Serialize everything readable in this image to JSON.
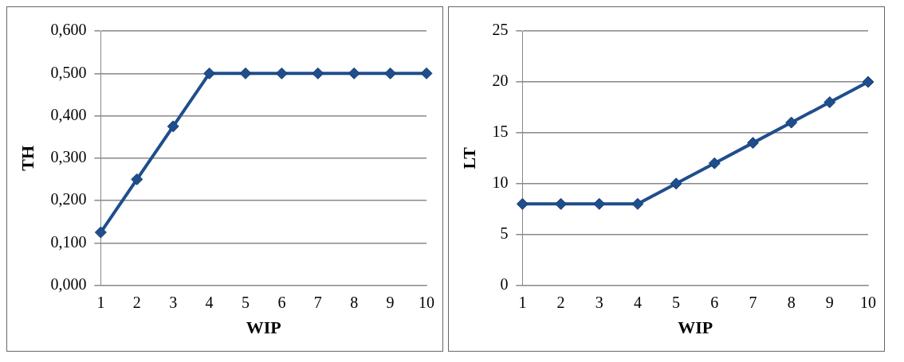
{
  "chart_data": [
    {
      "type": "line",
      "xlabel": "WIP",
      "ylabel": "TH",
      "categories": [
        "1",
        "2",
        "3",
        "4",
        "5",
        "6",
        "7",
        "8",
        "9",
        "10"
      ],
      "series": [
        {
          "color": "#1f4e8c",
          "values": [
            0.125,
            0.25,
            0.375,
            0.5,
            0.5,
            0.5,
            0.5,
            0.5,
            0.5,
            0.5
          ]
        }
      ],
      "ylim": [
        0,
        0.6
      ],
      "yticks": [
        {
          "value": 0,
          "label": "0,000"
        },
        {
          "value": 0.1,
          "label": "0,100"
        },
        {
          "value": 0.2,
          "label": "0,200"
        },
        {
          "value": 0.3,
          "label": "0,300"
        },
        {
          "value": 0.4,
          "label": "0,400"
        },
        {
          "value": 0.5,
          "label": "0,500"
        },
        {
          "value": 0.6,
          "label": "0,600"
        }
      ],
      "grid": "y",
      "legend": false,
      "marker": "diamond",
      "line_style": "solid"
    },
    {
      "type": "line",
      "xlabel": "WIP",
      "ylabel": "LT",
      "categories": [
        "1",
        "2",
        "3",
        "4",
        "5",
        "6",
        "7",
        "8",
        "9",
        "10"
      ],
      "series": [
        {
          "color": "#1f4e8c",
          "values": [
            8,
            8,
            8,
            8,
            10,
            12,
            14,
            16,
            18,
            20
          ]
        }
      ],
      "ylim": [
        0,
        25
      ],
      "yticks": [
        0,
        5,
        10,
        15,
        20,
        25
      ],
      "grid": "y",
      "legend": false,
      "marker": "diamond",
      "line_style": "solid"
    }
  ]
}
